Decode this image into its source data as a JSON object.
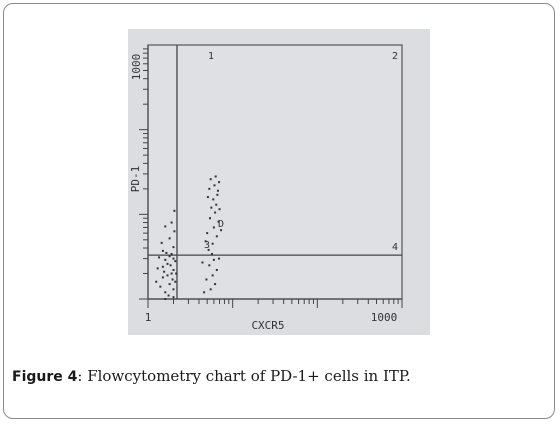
{
  "caption": {
    "label": "Figure 4",
    "text": ": Flowcytometry chart of PD-1+ cells in ITP."
  },
  "chart_data": {
    "type": "scatter",
    "xlabel": "CXCR5",
    "ylabel": "PD-1",
    "x_scale": "log",
    "y_scale": "log",
    "xlim": [
      1,
      1000
    ],
    "ylim": [
      1,
      1000
    ],
    "x_tick_labels": [
      "1",
      "1000"
    ],
    "y_tick_labels": [
      "1000"
    ],
    "gates": {
      "x": 2.2,
      "y": 3.3
    },
    "quadrant_labels": [
      "1",
      "2",
      "3",
      "4"
    ],
    "annotation": "D",
    "grid": false,
    "colors": {
      "background": "#dcdde0",
      "ink": "#333333"
    },
    "series": [
      {
        "points": [
          [
            1.6,
            1.2
          ],
          [
            1.8,
            1.5
          ],
          [
            2.0,
            1.3
          ],
          [
            1.5,
            1.8
          ],
          [
            1.9,
            2.0
          ],
          [
            1.3,
            2.3
          ],
          [
            1.7,
            2.6
          ],
          [
            2.0,
            2.2
          ],
          [
            1.4,
            1.4
          ],
          [
            2.1,
            1.6
          ],
          [
            1.6,
            2.9
          ],
          [
            1.9,
            3.4
          ],
          [
            2.0,
            4.1
          ],
          [
            1.5,
            3.7
          ],
          [
            1.8,
            5.2
          ],
          [
            2.05,
            6.3
          ],
          [
            1.35,
            3.1
          ],
          [
            1.75,
            1.1
          ],
          [
            1.95,
            1.7
          ],
          [
            1.55,
            2.1
          ],
          [
            1.85,
            2.5
          ],
          [
            2.1,
            2.8
          ],
          [
            1.65,
            3.5
          ],
          [
            1.45,
            4.6
          ],
          [
            1.9,
            8.0
          ],
          [
            1.6,
            7.2
          ],
          [
            2.0,
            1.05
          ],
          [
            1.7,
            1.9
          ],
          [
            1.5,
            2.4
          ],
          [
            1.25,
            1.6
          ],
          [
            2.0,
            3.0
          ],
          [
            1.8,
            3.2
          ],
          [
            1.6,
            1.0
          ],
          [
            2.15,
            2.0
          ],
          [
            2.05,
            11.0
          ],
          [
            5.2,
            3.8
          ],
          [
            5.8,
            4.5
          ],
          [
            6.5,
            5.5
          ],
          [
            5.0,
            6.0
          ],
          [
            6.0,
            7.0
          ],
          [
            6.8,
            8.2
          ],
          [
            5.4,
            9.0
          ],
          [
            6.2,
            10.5
          ],
          [
            5.6,
            12.0
          ],
          [
            6.4,
            13.0
          ],
          [
            5.9,
            15.0
          ],
          [
            6.6,
            17.0
          ],
          [
            5.3,
            20.0
          ],
          [
            6.1,
            22.0
          ],
          [
            6.9,
            24.0
          ],
          [
            5.5,
            26.0
          ],
          [
            6.3,
            28.0
          ],
          [
            6.7,
            19.0
          ],
          [
            5.1,
            16.0
          ],
          [
            7.0,
            11.5
          ],
          [
            5.7,
            3.4
          ],
          [
            6.0,
            2.9
          ],
          [
            5.3,
            2.5
          ],
          [
            6.5,
            2.2
          ],
          [
            5.8,
            1.9
          ],
          [
            4.9,
            1.7
          ],
          [
            6.2,
            1.5
          ],
          [
            5.5,
            1.3
          ],
          [
            4.6,
            1.2
          ],
          [
            6.9,
            3.0
          ],
          [
            4.4,
            2.7
          ],
          [
            7.3,
            6.5
          ],
          [
            4.8,
            4.8
          ]
        ]
      }
    ]
  }
}
